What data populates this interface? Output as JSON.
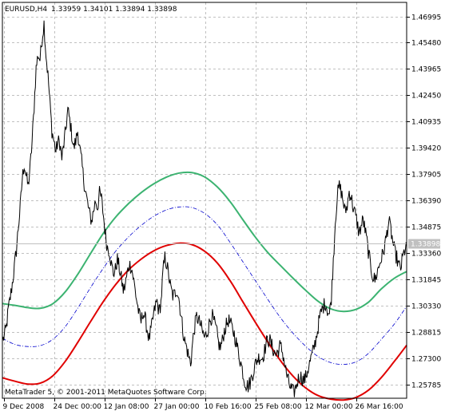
{
  "header": {
    "symbol": "EURUSD,H4",
    "quote": "1.33959 1.34101 1.33894 1.33898"
  },
  "footer": {
    "copyright": "MetaTrader 5, © 2001-2011 MetaQuotes Software Corp."
  },
  "colors": {
    "background": "#ffffff",
    "grid": "#c0c0c0",
    "axis": "#000000",
    "price_line": "#000000",
    "upper_band": "#3cb371",
    "middle_band": "#0000cd",
    "lower_band": "#e00000",
    "last_price_label_bg": "#c0c0c0",
    "last_price_line": "#c0c0c0"
  },
  "chart_data": {
    "type": "line",
    "ylim": [
      1.25,
      1.478
    ],
    "y_ticks": [
      1.46995,
      1.4548,
      1.43965,
      1.4245,
      1.40935,
      1.3942,
      1.37905,
      1.3639,
      1.34875,
      1.3336,
      1.31845,
      1.3033,
      1.28815,
      1.273,
      1.25785
    ],
    "y_tick_labels": [
      "1.46995",
      "1.45480",
      "1.43965",
      "1.42450",
      "1.40935",
      "1.39420",
      "1.37905",
      "1.36390",
      "1.34875",
      "1.33360",
      "1.31845",
      "1.30330",
      "1.28815",
      "1.27300",
      "1.25785"
    ],
    "x_tick_labels": [
      "9 Dec 2008",
      "24 Dec 00:00",
      "12 Jan 08:00",
      "27 Jan 00:00",
      "10 Feb 16:00",
      "25 Feb 08:00",
      "12 Mar 00:00",
      "26 Mar 16:00"
    ],
    "last_price": 1.33898,
    "last_price_label": "1.33898",
    "price_series": {
      "values": [
        1.283,
        1.286,
        1.291,
        1.301,
        1.308,
        1.316,
        1.325,
        1.335,
        1.348,
        1.36,
        1.376,
        1.385,
        1.378,
        1.372,
        1.383,
        1.398,
        1.418,
        1.44,
        1.448,
        1.445,
        1.457,
        1.466,
        1.448,
        1.436,
        1.42,
        1.404,
        1.398,
        1.392,
        1.398,
        1.397,
        1.388,
        1.396,
        1.405,
        1.416,
        1.41,
        1.402,
        1.394,
        1.398,
        1.404,
        1.394,
        1.386,
        1.376,
        1.369,
        1.362,
        1.356,
        1.352,
        1.358,
        1.364,
        1.36,
        1.368,
        1.365,
        1.355,
        1.344,
        1.337,
        1.335,
        1.327,
        1.322,
        1.324,
        1.33,
        1.325,
        1.319,
        1.312,
        1.315,
        1.322,
        1.327,
        1.326,
        1.32,
        1.312,
        1.305,
        1.298,
        1.294,
        1.3,
        1.296,
        1.29,
        1.284,
        1.289,
        1.296,
        1.302,
        1.306,
        1.3,
        1.305,
        1.322,
        1.331,
        1.327,
        1.32,
        1.313,
        1.309,
        1.31,
        1.313,
        1.308,
        1.299,
        1.29,
        1.283,
        1.279,
        1.274,
        1.27,
        1.282,
        1.291,
        1.297,
        1.295,
        1.292,
        1.288,
        1.285,
        1.287,
        1.291,
        1.296,
        1.297,
        1.293,
        1.289,
        1.282,
        1.279,
        1.283,
        1.289,
        1.292,
        1.295,
        1.293,
        1.29,
        1.287,
        1.282,
        1.277,
        1.272,
        1.267,
        1.261,
        1.258,
        1.257,
        1.259,
        1.263,
        1.267,
        1.271,
        1.273,
        1.274,
        1.273,
        1.276,
        1.281,
        1.284,
        1.283,
        1.28,
        1.277,
        1.275,
        1.277,
        1.28,
        1.278,
        1.273,
        1.266,
        1.261,
        1.257,
        1.255,
        1.253,
        1.256,
        1.26,
        1.263,
        1.262,
        1.26,
        1.262,
        1.266,
        1.27,
        1.274,
        1.278,
        1.283,
        1.289,
        1.296,
        1.3,
        1.303,
        1.305,
        1.301,
        1.298,
        1.308,
        1.33,
        1.352,
        1.367,
        1.372,
        1.369,
        1.363,
        1.357,
        1.361,
        1.369,
        1.366,
        1.36,
        1.356,
        1.351,
        1.345,
        1.349,
        1.353,
        1.347,
        1.34,
        1.332,
        1.325,
        1.32,
        1.318,
        1.322,
        1.326,
        1.33,
        1.333,
        1.338,
        1.345,
        1.352,
        1.347,
        1.34,
        1.334,
        1.331,
        1.326,
        1.325,
        1.331,
        1.335,
        1.339
      ]
    },
    "series": [
      {
        "values": [
          1.3045,
          1.3035,
          1.3022,
          1.3018,
          1.3045,
          1.3115,
          1.3218,
          1.3336,
          1.3451,
          1.3546,
          1.3622,
          1.3685,
          1.3736,
          1.3774,
          1.3797,
          1.38,
          1.3775,
          1.3718,
          1.3635,
          1.3532,
          1.343,
          1.334,
          1.3265,
          1.3192,
          1.3122,
          1.3058,
          1.3015,
          1.3,
          1.3012,
          1.3055,
          1.313,
          1.319,
          1.323
        ]
      },
      {
        "values": [
          1.2845,
          1.281,
          1.2798,
          1.2803,
          1.284,
          1.2915,
          1.3023,
          1.314,
          1.325,
          1.335,
          1.343,
          1.3496,
          1.3549,
          1.3585,
          1.3602,
          1.3598,
          1.3565,
          1.35,
          1.34,
          1.329,
          1.318,
          1.307,
          1.2965,
          1.2875,
          1.28,
          1.274,
          1.2705,
          1.2695,
          1.271,
          1.276,
          1.284,
          1.2925,
          1.303
        ]
      },
      {
        "values": [
          1.2618,
          1.2598,
          1.2582,
          1.2587,
          1.263,
          1.2715,
          1.2826,
          1.2944,
          1.3058,
          1.3158,
          1.324,
          1.3302,
          1.335,
          1.338,
          1.3393,
          1.3385,
          1.3347,
          1.328,
          1.318,
          1.306,
          1.294,
          1.2825,
          1.2718,
          1.2628,
          1.256,
          1.2515,
          1.2495,
          1.249,
          1.2505,
          1.2548,
          1.262,
          1.271,
          1.2805
        ]
      }
    ],
    "grid": true
  }
}
